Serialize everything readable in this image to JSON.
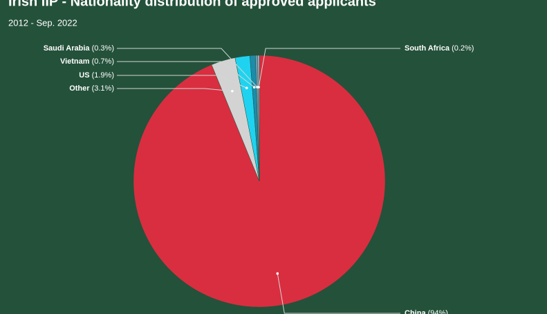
{
  "chart_data": {
    "type": "pie",
    "title": "Irish IIP - Nationality distribution of approved applicants",
    "subtitle": "2012 - Sep. 2022",
    "categories": [
      "China",
      "Other",
      "US",
      "Vietnam",
      "Saudi Arabia",
      "South Africa"
    ],
    "values": [
      94,
      3.1,
      1.9,
      0.7,
      0.3,
      0.2
    ],
    "value_labels": [
      "(94%)",
      "(3.1%)",
      "(1.9%)",
      "(0.7%)",
      "(0.3%)",
      "(0.2%)"
    ],
    "colors": [
      "#d92e40",
      "#d3d3d3",
      "#1fd3f0",
      "#1b8cab",
      "#6a9bb3",
      "#a6b8c8"
    ]
  }
}
